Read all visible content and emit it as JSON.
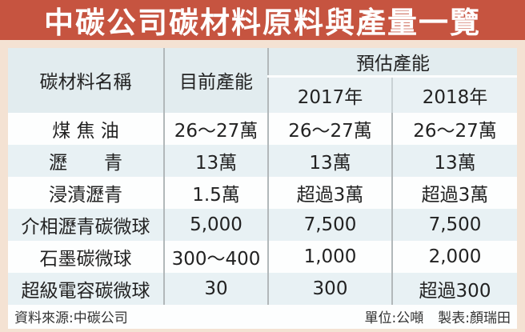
{
  "title": "中碳公司碳材料原料與產量一覽",
  "colors": {
    "title_bg": "#c65440",
    "title_text": "#ffffff",
    "page_border": "#f4e2d3",
    "header_bg": "#e2ecef",
    "row_alt_bg": "#e8f1f4",
    "row_bg": "#fdfefe",
    "divider": "#b2b8ba",
    "text": "#222222"
  },
  "table": {
    "headers": {
      "material": "碳材料名稱",
      "current": "目前產能",
      "estimated": "預估產能",
      "year2017": "2017年",
      "year2018": "2018年"
    },
    "rows": [
      {
        "name": "煤 焦 油",
        "current": "26～27萬",
        "y2017": "26～27萬",
        "y2018": "26～27萬"
      },
      {
        "name": "瀝　　青",
        "current": "13萬",
        "y2017": "13萬",
        "y2018": "13萬"
      },
      {
        "name": "浸漬瀝青",
        "current": "1.5萬",
        "y2017": "超過3萬",
        "y2018": "超過3萬"
      },
      {
        "name": "介相瀝青碳微球",
        "current": "5,000",
        "y2017": "7,500",
        "y2018": "7,500"
      },
      {
        "name": "石墨碳微球",
        "current": "300～400",
        "y2017": "1,000",
        "y2018": "2,000"
      },
      {
        "name": "超級電容碳微球",
        "current": "30",
        "y2017": "300",
        "y2018": "超過300"
      }
    ]
  },
  "footer": {
    "source": "資料來源:中碳公司",
    "unit": "單位:公噸",
    "credit": "製表:顏瑞田"
  },
  "chart_data": {
    "type": "table",
    "title": "中碳公司碳材料原料與產量一覽",
    "unit": "公噸",
    "columns": [
      "碳材料名稱",
      "目前產能",
      "預估產能 2017年",
      "預估產能 2018年"
    ],
    "rows": [
      [
        "煤焦油",
        "26～27萬",
        "26～27萬",
        "26～27萬"
      ],
      [
        "瀝青",
        "13萬",
        "13萬",
        "13萬"
      ],
      [
        "浸漬瀝青",
        "1.5萬",
        "超過3萬",
        "超過3萬"
      ],
      [
        "介相瀝青碳微球",
        "5,000",
        "7,500",
        "7,500"
      ],
      [
        "石墨碳微球",
        "300～400",
        "1,000",
        "2,000"
      ],
      [
        "超級電容碳微球",
        "30",
        "300",
        "超過300"
      ]
    ],
    "notes": [
      "資料來源:中碳公司",
      "製表:顏瑞田"
    ]
  }
}
